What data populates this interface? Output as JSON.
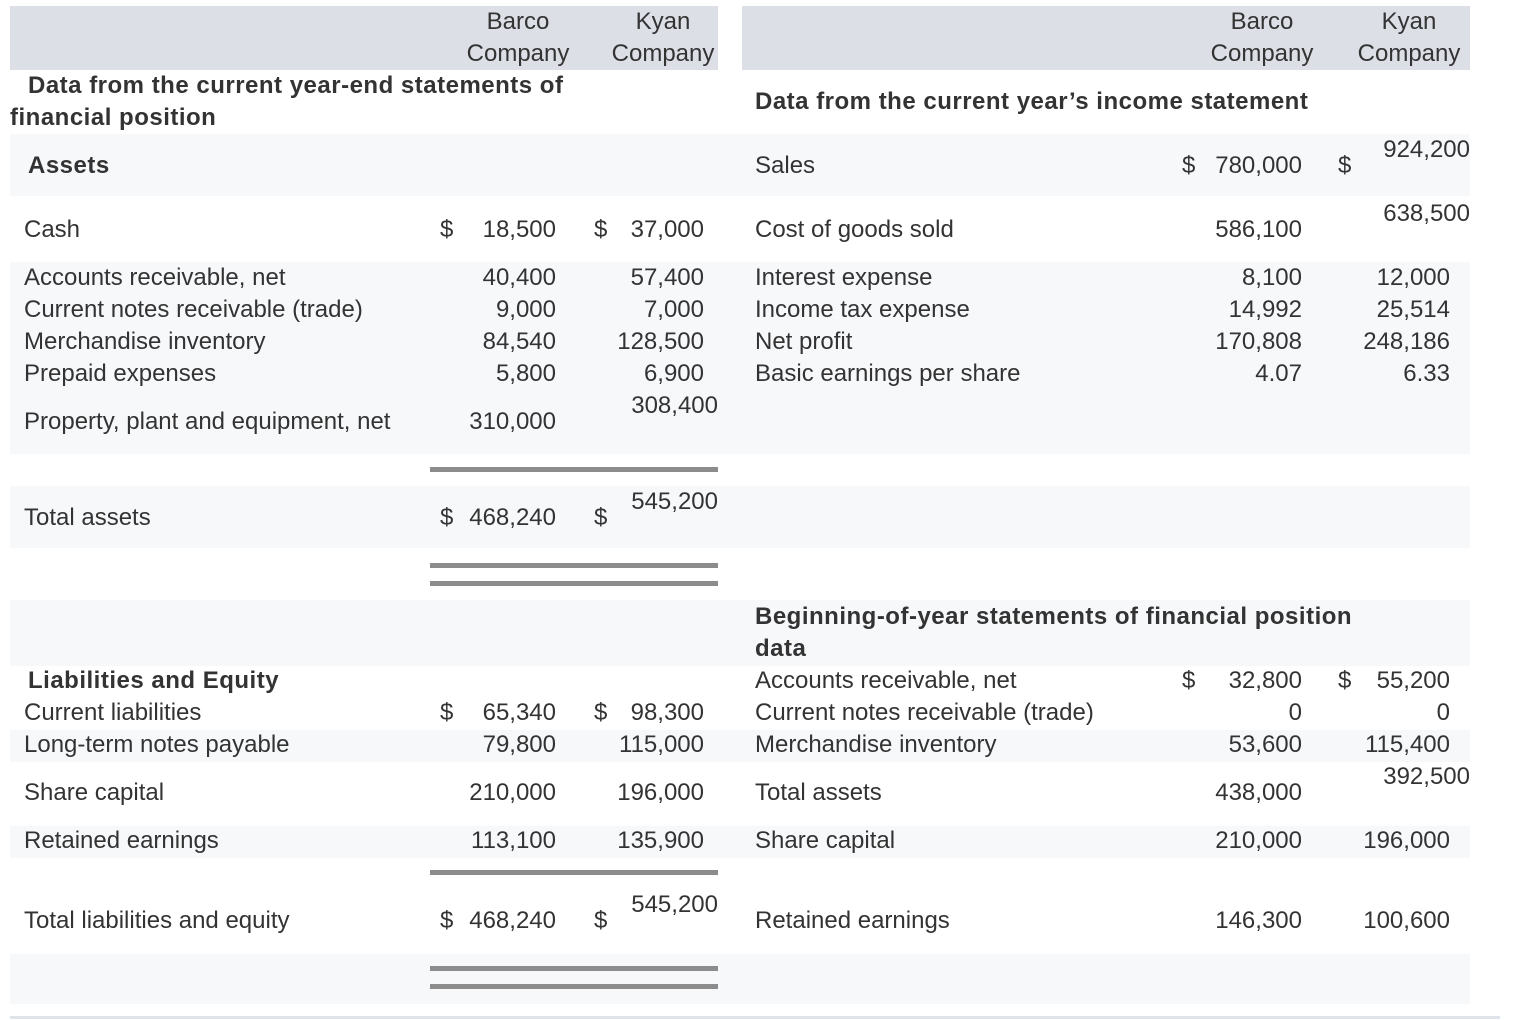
{
  "columns": {
    "barco_line1": "Barco",
    "barco_line2": "Company",
    "kyan_line1": "Kyan",
    "kyan_line2": "Company"
  },
  "left": {
    "heading_line1": "Data from the current year-end statements of",
    "heading_line2": "financial position",
    "assets_heading": "Assets",
    "rows": {
      "cash": {
        "label": "Cash",
        "barco": "18,500",
        "kyan": "37,000"
      },
      "ar": {
        "label": "Accounts receivable, net",
        "barco": "40,400",
        "kyan": "57,400"
      },
      "cnr": {
        "label": "Current notes receivable (trade)",
        "barco": "9,000",
        "kyan": "7,000"
      },
      "inv": {
        "label": "Merchandise inventory",
        "barco": "84,540",
        "kyan": "128,500"
      },
      "prepaid": {
        "label": "Prepaid expenses",
        "barco": "5,800",
        "kyan": "6,900"
      },
      "ppe": {
        "label": "Property, plant and equipment, net",
        "barco": "310,000",
        "kyan": "308,400"
      },
      "total_assets": {
        "label": "Total assets",
        "barco": "468,240",
        "kyan": "545,200"
      }
    },
    "liab_heading": "Liabilities and Equity",
    "liab_rows": {
      "cl": {
        "label": "Current liabilities",
        "barco": "65,340",
        "kyan": "98,300"
      },
      "ltnp": {
        "label": "Long-term notes payable",
        "barco": "79,800",
        "kyan": "115,000"
      },
      "sc": {
        "label": "Share capital",
        "barco": "210,000",
        "kyan": "196,000"
      },
      "re": {
        "label": "Retained earnings",
        "barco": "113,100",
        "kyan": "135,900"
      },
      "tle": {
        "label": "Total liabilities and equity",
        "barco": "468,240",
        "kyan": "545,200"
      }
    }
  },
  "right": {
    "income_heading": "Data from the current year’s income statement",
    "income_rows": {
      "sales": {
        "label": "Sales",
        "barco": "780,000",
        "kyan": "924,200"
      },
      "cogs": {
        "label": "Cost of goods sold",
        "barco": "586,100",
        "kyan": "638,500"
      },
      "interest": {
        "label": "Interest expense",
        "barco": "8,100",
        "kyan": "12,000"
      },
      "tax": {
        "label": "Income tax expense",
        "barco": "14,992",
        "kyan": "25,514"
      },
      "np": {
        "label": "Net profit",
        "barco": "170,808",
        "kyan": "248,186"
      },
      "eps": {
        "label": "Basic earnings per share",
        "barco": "4.07",
        "kyan": "6.33"
      }
    },
    "boy_heading_line1": "Beginning-of-year statements of financial position",
    "boy_heading_line2": "data",
    "boy_rows": {
      "ar": {
        "label": "Accounts receivable, net",
        "barco": "32,800",
        "kyan": "55,200"
      },
      "cnr": {
        "label": "Current notes receivable (trade)",
        "barco": "0",
        "kyan": "0"
      },
      "inv": {
        "label": "Merchandise inventory",
        "barco": "53,600",
        "kyan": "115,400"
      },
      "ta": {
        "label": "Total assets",
        "barco": "438,000",
        "kyan": "392,500"
      },
      "sc": {
        "label": "Share capital",
        "barco": "210,000",
        "kyan": "196,000"
      },
      "re": {
        "label": "Retained earnings",
        "barco": "146,300",
        "kyan": "100,600"
      }
    }
  },
  "currency_symbol": "$"
}
